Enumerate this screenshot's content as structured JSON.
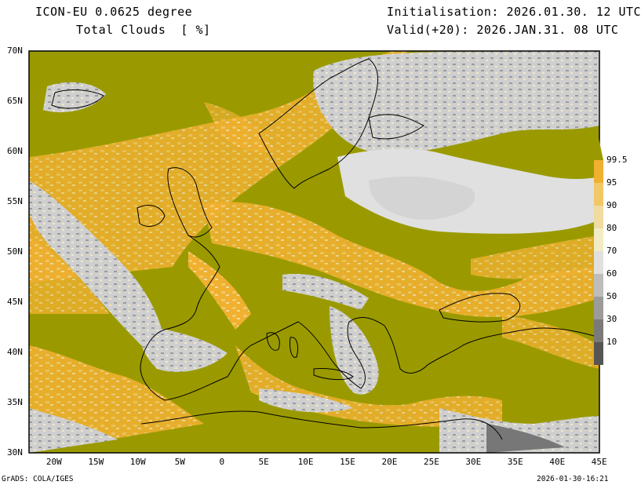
{
  "header": {
    "model": "ICON-EU 0.0625 degree",
    "field": "Total Clouds  [ %]",
    "init": "Initialisation: 2026.01.30. 12 UTC",
    "valid": "Valid(+20): 2026.JAN.31. 08 UTC"
  },
  "axes": {
    "lat_labels": [
      "70N",
      "65N",
      "60N",
      "55N",
      "50N",
      "45N",
      "40N",
      "35N",
      "30N"
    ],
    "lon_labels": [
      "20W",
      "15W",
      "10W",
      "5W",
      "0",
      "5E",
      "10E",
      "15E",
      "20E",
      "25E",
      "30E",
      "35E",
      "40E",
      "45E"
    ],
    "lat_range": [
      30,
      70
    ],
    "lon_range": [
      -23,
      45
    ]
  },
  "colorbar": {
    "levels": [
      "99.5",
      "95",
      "90",
      "80",
      "70",
      "60",
      "50",
      "30",
      "10"
    ],
    "colors": [
      "#9a9a00",
      "#f0b030",
      "#f2c765",
      "#f0dba0",
      "#f1ecc4",
      "#e0e0e0",
      "#bdbdbd",
      "#9b9b9b",
      "#7a7a7a",
      "#555555"
    ]
  },
  "footer": {
    "left": "GrADS: COLA/IGES",
    "right": "2026-01-30-16:21"
  }
}
